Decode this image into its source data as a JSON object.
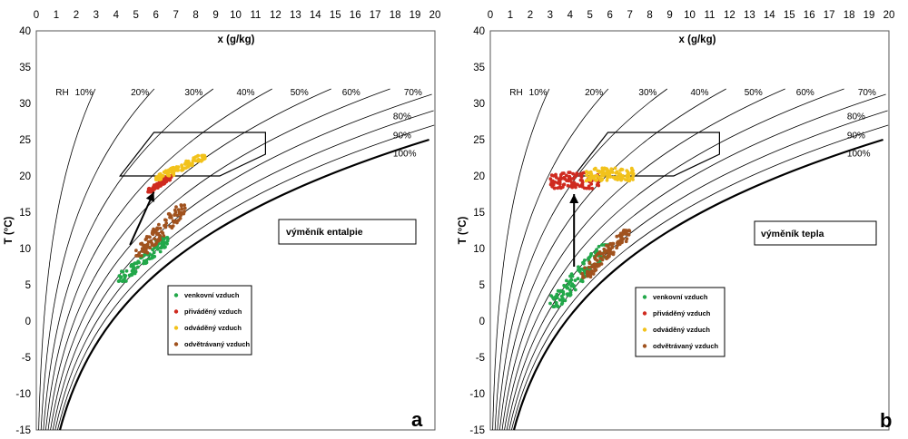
{
  "colors": {
    "venkovni": "#22a84a",
    "privadeny": "#cf2a1f",
    "odvadeny": "#f2c21b",
    "odvetravany": "#a0521e"
  },
  "chart_data": [
    {
      "type": "scatter",
      "panel": "a",
      "annotation": "výměník entalpie",
      "xlabel": "x (g/kg)",
      "ylabel": "T (°C)",
      "xlim": [
        0,
        20
      ],
      "ylim": [
        -15,
        40
      ],
      "x_ticks": [
        "0",
        "1",
        "2",
        "3",
        "4",
        "5",
        "6",
        "7",
        "8",
        "9",
        "10",
        "11",
        "12",
        "13",
        "14",
        "15",
        "16",
        "17",
        "18",
        "19",
        "20"
      ],
      "y_ticks": [
        "-15",
        "-10",
        "-5",
        "0",
        "5",
        "10",
        "15",
        "20",
        "25",
        "30",
        "35",
        "40"
      ],
      "rh_title": "RH",
      "rh_labels_top": [
        "10%",
        "20%",
        "30%",
        "40%",
        "50%",
        "60%",
        "70%"
      ],
      "rh_labels_right": [
        "80%",
        "90%",
        "100%"
      ],
      "comfort_zone": [
        [
          4.2,
          20
        ],
        [
          5.9,
          26
        ],
        [
          11.5,
          26
        ],
        [
          11.5,
          23
        ],
        [
          9.2,
          20
        ]
      ],
      "arrow": {
        "from": [
          4.7,
          10.5
        ],
        "to": [
          5.9,
          17.8
        ]
      },
      "legend": [
        "venkovní vzduch",
        "přiváděný vzduch",
        "odváděný vzduch",
        "odvětrávaný vzduch"
      ],
      "series": [
        {
          "name": "venkovní vzduch",
          "x_range": [
            4.1,
            6.6
          ],
          "t_range": [
            5.5,
            11.5
          ],
          "trend": "rising"
        },
        {
          "name": "přiváděný vzduch",
          "x_range": [
            5.6,
            6.8
          ],
          "t_range": [
            17.8,
            20.0
          ],
          "trend": "rising"
        },
        {
          "name": "odváděný vzduch",
          "x_range": [
            6.0,
            8.5
          ],
          "t_range": [
            19.5,
            22.8
          ],
          "trend": "rising"
        },
        {
          "name": "odvětrávaný vzduch",
          "x_range": [
            5.0,
            7.5
          ],
          "t_range": [
            9.0,
            16.0
          ],
          "trend": "rising"
        }
      ]
    },
    {
      "type": "scatter",
      "panel": "b",
      "annotation": "výměník tepla",
      "xlabel": "x (g/kg)",
      "ylabel": "T (°C)",
      "xlim": [
        0,
        20
      ],
      "ylim": [
        -15,
        40
      ],
      "x_ticks": [
        "0",
        "1",
        "2",
        "3",
        "4",
        "5",
        "6",
        "7",
        "8",
        "9",
        "10",
        "11",
        "12",
        "13",
        "14",
        "15",
        "16",
        "17",
        "18",
        "19",
        "20"
      ],
      "y_ticks": [
        "-15",
        "-10",
        "-5",
        "0",
        "5",
        "10",
        "15",
        "20",
        "25",
        "30",
        "35",
        "40"
      ],
      "rh_title": "RH",
      "rh_labels_top": [
        "10%",
        "20%",
        "30%",
        "40%",
        "50%",
        "60%",
        "70%"
      ],
      "rh_labels_right": [
        "80%",
        "90%",
        "100%"
      ],
      "comfort_zone": [
        [
          4.2,
          20
        ],
        [
          5.9,
          26
        ],
        [
          11.5,
          26
        ],
        [
          11.5,
          23
        ],
        [
          9.2,
          20
        ]
      ],
      "arrow": {
        "from": [
          4.2,
          7.5
        ],
        "to": [
          4.2,
          17.5
        ]
      },
      "legend": [
        "venkovní vzduch",
        "přiváděný vzduch",
        "odváděný vzduch",
        "odvětrávaný vzduch"
      ],
      "series": [
        {
          "name": "venkovní vzduch",
          "x_range": [
            3.0,
            6.0
          ],
          "t_range": [
            2.0,
            10.5
          ],
          "trend": "rising"
        },
        {
          "name": "přiváděný vzduch",
          "x_range": [
            3.0,
            5.5
          ],
          "t_range": [
            18.5,
            21.0
          ],
          "trend": "flat"
        },
        {
          "name": "odváděný vzduch",
          "x_range": [
            4.8,
            7.2
          ],
          "t_range": [
            19.5,
            21.5
          ],
          "trend": "flat"
        },
        {
          "name": "odvětrávaný vzduch",
          "x_range": [
            4.6,
            7.0
          ],
          "t_range": [
            6.0,
            12.5
          ],
          "trend": "rising"
        }
      ]
    }
  ]
}
